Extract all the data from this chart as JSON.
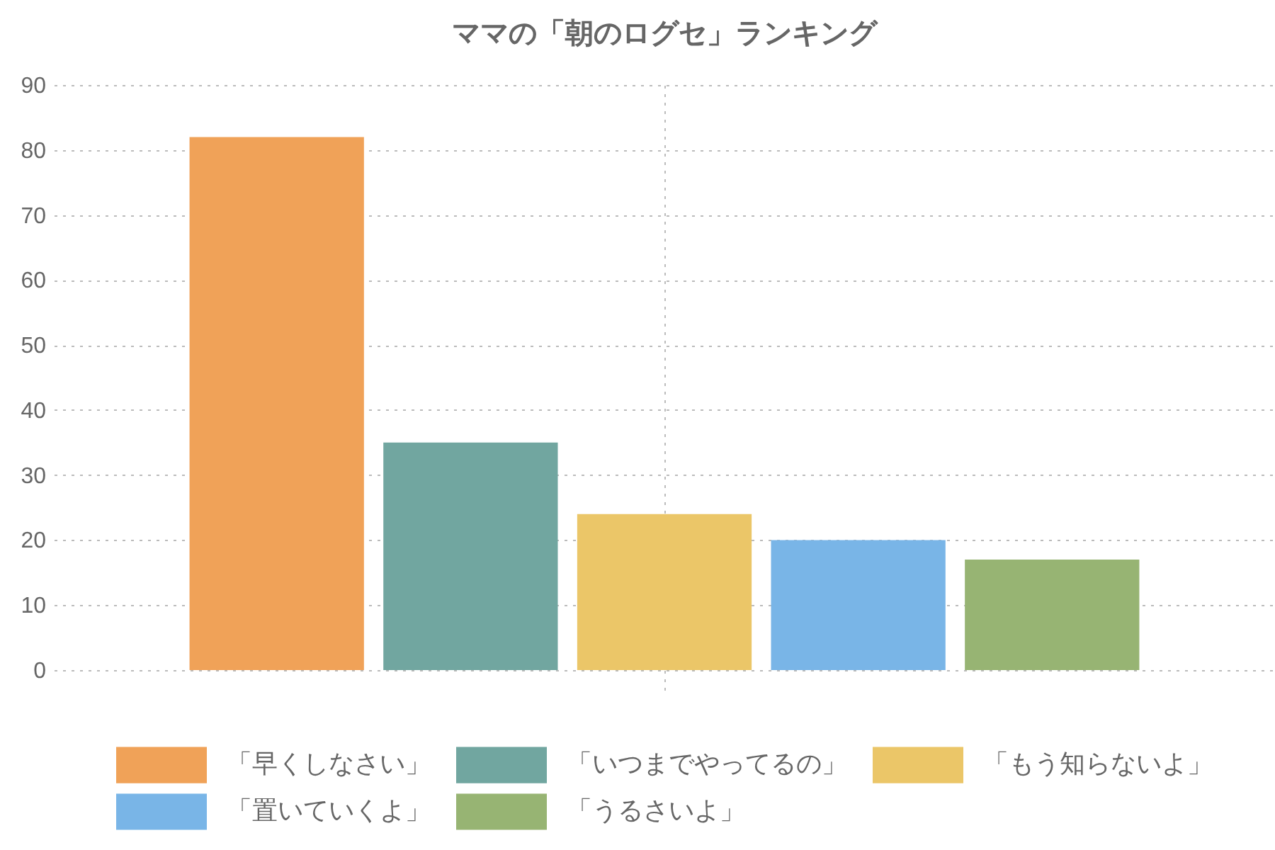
{
  "chart_data": {
    "type": "bar",
    "title": "ママの「朝のログセ」ランキング",
    "categories": [
      null
    ],
    "series": [
      {
        "name": "「早くしなさい」",
        "color": "#f0a258",
        "values": [
          82
        ]
      },
      {
        "name": "「いつまでやってるの」",
        "color": "#71a6a0",
        "values": [
          35
        ]
      },
      {
        "name": "「もう知らないよ」",
        "color": "#ebc668",
        "values": [
          24
        ]
      },
      {
        "name": "「置いていくよ」",
        "color": "#79b5e7",
        "values": [
          20
        ]
      },
      {
        "name": "「うるさいよ」",
        "color": "#97b473",
        "values": [
          17
        ]
      }
    ],
    "ylim": [
      0,
      90
    ],
    "yticks": [
      0,
      10,
      20,
      30,
      40,
      50,
      60,
      70,
      80,
      90
    ],
    "grid": true,
    "legend": "bottom",
    "tick_labels": "y"
  }
}
